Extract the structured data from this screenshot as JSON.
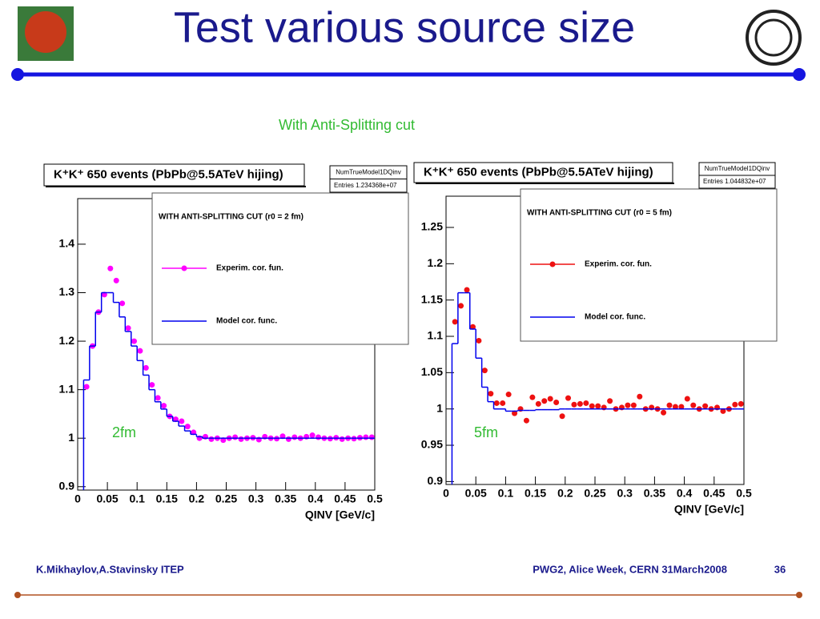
{
  "title": "Test various source size",
  "subtitle": "With Anti-Splitting cut",
  "footer": {
    "left": "K.Mikhaylov,A.Stavinsky ITEP",
    "right": "PWG2, Alice Week, CERN 31March2008",
    "page": "36"
  },
  "chart_data": [
    {
      "type": "scatter",
      "title": "K⁺K⁺ 650 events (PbPb@5.5ATeV hijing)",
      "stats_name": "NumTrueModel1DQinv",
      "stats_entries": "Entries  1.234368e+07",
      "legend_title": "WITH ANTI-SPLITTING CUT (r0 = 2 fm)",
      "annotation": "2fm",
      "x_label": "QINV  [GeV/c]",
      "xlim": [
        0,
        0.5
      ],
      "ylim": [
        0.893,
        1.494
      ],
      "xticks": [
        0,
        0.05,
        0.1,
        0.15,
        0.2,
        0.25,
        0.3,
        0.35,
        0.4,
        0.45,
        0.5
      ],
      "yticks": [
        0.9,
        1,
        1.1,
        1.2,
        1.3,
        1.4
      ],
      "x": [
        0.015,
        0.025,
        0.035,
        0.045,
        0.055,
        0.065,
        0.075,
        0.085,
        0.095,
        0.105,
        0.115,
        0.125,
        0.135,
        0.145,
        0.155,
        0.165,
        0.175,
        0.185,
        0.195,
        0.205,
        0.215,
        0.225,
        0.235,
        0.245,
        0.255,
        0.265,
        0.275,
        0.285,
        0.295,
        0.305,
        0.315,
        0.325,
        0.335,
        0.345,
        0.355,
        0.365,
        0.375,
        0.385,
        0.395,
        0.405,
        0.415,
        0.425,
        0.435,
        0.445,
        0.455,
        0.465,
        0.475,
        0.485,
        0.495
      ],
      "series": [
        {
          "name": "Experim. cor. fun.",
          "color": "#ff00ff",
          "style": "points",
          "values": [
            1.106,
            1.19,
            1.26,
            1.296,
            1.35,
            1.325,
            1.278,
            1.227,
            1.2,
            1.18,
            1.145,
            1.11,
            1.083,
            1.067,
            1.045,
            1.039,
            1.035,
            1.024,
            1.012,
            1.0,
            1.003,
            0.998,
            1.0,
            0.996,
            1.0,
            1.002,
            0.998,
            1.0,
            1.001,
            0.997,
            1.003,
            1.0,
            0.999,
            1.004,
            0.998,
            1.002,
            1.0,
            1.003,
            1.006,
            1.002,
            1.0,
            0.999,
            1.001,
            0.998,
            1.0,
            0.999,
            1.001,
            1.002,
            1.002
          ]
        },
        {
          "name": "Model cor. func.",
          "color": "#0000ee",
          "style": "step",
          "values": [
            1.12,
            1.19,
            1.26,
            1.3,
            1.3,
            1.28,
            1.25,
            1.22,
            1.19,
            1.16,
            1.13,
            1.1,
            1.075,
            1.06,
            1.045,
            1.035,
            1.025,
            1.015,
            1.008,
            1.003,
            1.0,
            1.0,
            1.0,
            1.0,
            1.0,
            1.0,
            1.0,
            1.0,
            1.0,
            1.0,
            1.0,
            1.0,
            1.0,
            1.0,
            1.0,
            1.0,
            1.0,
            1.0,
            1.0,
            1.0,
            1.0,
            1.0,
            1.0,
            1.0,
            1.0,
            1.0,
            1.0,
            1.0,
            1.0
          ]
        }
      ]
    },
    {
      "type": "scatter",
      "title": "K⁺K⁺ 650 events (PbPb@5.5ATeV hijing)",
      "stats_name": "NumTrueModel1DQinv",
      "stats_entries": "Entries  1.044832e+07",
      "legend_title": "WITH ANTI-SPLITTING CUT (r0 = 5 fm)",
      "annotation": "5fm",
      "x_label": "QINV  [GeV/c]",
      "xlim": [
        0,
        0.5
      ],
      "ylim": [
        0.896,
        1.293
      ],
      "xticks": [
        0,
        0.05,
        0.1,
        0.15,
        0.2,
        0.25,
        0.3,
        0.35,
        0.4,
        0.45,
        0.5
      ],
      "yticks": [
        0.9,
        0.95,
        1,
        1.05,
        1.1,
        1.15,
        1.2,
        1.25
      ],
      "x": [
        0.015,
        0.025,
        0.035,
        0.045,
        0.055,
        0.065,
        0.075,
        0.085,
        0.095,
        0.105,
        0.115,
        0.125,
        0.135,
        0.145,
        0.155,
        0.165,
        0.175,
        0.185,
        0.195,
        0.205,
        0.215,
        0.225,
        0.235,
        0.245,
        0.255,
        0.265,
        0.275,
        0.285,
        0.295,
        0.305,
        0.315,
        0.325,
        0.335,
        0.345,
        0.355,
        0.365,
        0.375,
        0.385,
        0.395,
        0.405,
        0.415,
        0.425,
        0.435,
        0.445,
        0.455,
        0.465,
        0.475,
        0.485,
        0.495
      ],
      "series": [
        {
          "name": "Experim. cor. fun.",
          "color": "#ee1111",
          "style": "points",
          "values": [
            1.12,
            1.142,
            1.164,
            1.113,
            1.094,
            1.053,
            1.021,
            1.008,
            1.008,
            1.02,
            0.994,
            1.0,
            0.984,
            1.016,
            1.007,
            1.011,
            1.014,
            1.009,
            0.99,
            1.015,
            1.006,
            1.007,
            1.008,
            1.004,
            1.004,
            1.002,
            1.011,
            1.0,
            1.002,
            1.005,
            1.005,
            1.017,
            1.0,
            1.002,
            1.0,
            0.995,
            1.005,
            1.003,
            1.003,
            1.014,
            1.005,
            1.0,
            1.004,
            1.0,
            1.002,
            0.997,
            1.0,
            1.006,
            1.007
          ]
        },
        {
          "name": "Model cor. func.",
          "color": "#0000ee",
          "style": "step",
          "values": [
            1.09,
            1.16,
            1.16,
            1.11,
            1.07,
            1.03,
            1.01,
            1.0,
            1.0,
            0.997,
            0.997,
            0.998,
            0.998,
            0.998,
            0.999,
            0.999,
            0.999,
            0.999,
            1.0,
            1.0,
            1.0,
            1.0,
            1.0,
            1.0,
            1.0,
            1.0,
            1.0,
            1.0,
            1.0,
            1.0,
            1.0,
            1.0,
            1.0,
            1.0,
            1.0,
            1.0,
            1.0,
            1.0,
            1.0,
            1.0,
            1.0,
            1.0,
            1.0,
            1.0,
            1.0,
            1.0,
            1.0,
            1.0,
            1.0
          ]
        }
      ]
    }
  ]
}
